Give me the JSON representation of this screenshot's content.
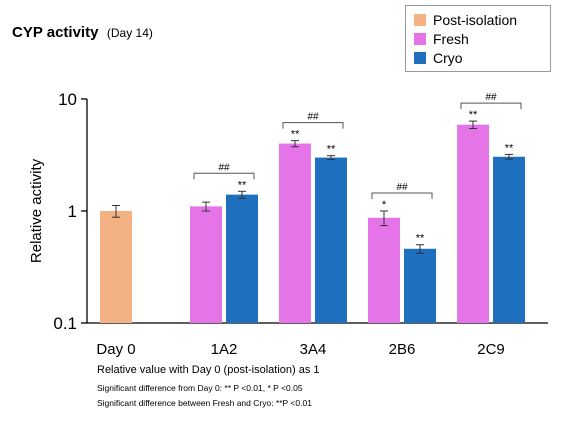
{
  "chart_data": {
    "type": "bar",
    "title": "CYP activity",
    "subtitle": "(Day 14)",
    "ylabel": "Relative activity",
    "yscale": "log",
    "ylim": [
      0.1,
      10
    ],
    "yticks": [
      {
        "value": 0.1,
        "label": "0.1"
      },
      {
        "value": 1,
        "label": "1"
      },
      {
        "value": 10,
        "label": "10"
      }
    ],
    "categories": [
      "Day 0",
      "1A2",
      "3A4",
      "2B6",
      "2C9"
    ],
    "series": [
      {
        "name": "Post-isolation",
        "color": "#f4b183",
        "values": [
          1.0,
          null,
          null,
          null,
          null
        ],
        "errors": [
          0.12,
          null,
          null,
          null,
          null
        ],
        "marks": [
          "",
          "",
          "",
          "",
          ""
        ]
      },
      {
        "name": "Fresh",
        "color": "#e574e8",
        "values": [
          null,
          1.1,
          4.0,
          0.87,
          5.9
        ],
        "errors": [
          null,
          0.1,
          0.25,
          0.13,
          0.45
        ],
        "marks": [
          "",
          "",
          "**",
          "*",
          "**"
        ]
      },
      {
        "name": "Cryo",
        "color": "#1f6fbf",
        "values": [
          null,
          1.4,
          3.0,
          0.46,
          3.05
        ],
        "errors": [
          null,
          0.1,
          0.12,
          0.04,
          0.15
        ],
        "marks": [
          "",
          "**",
          "**",
          "**",
          "**"
        ]
      }
    ],
    "comparison_mark": "##",
    "comparison_categories": [
      "1A2",
      "3A4",
      "2B6",
      "2C9"
    ],
    "legend_position": "top-right",
    "grid": false
  },
  "notes": {
    "main": "Relative value with Day 0 (post-isolation) as 1",
    "sig_day0": "Significant difference from Day 0: ** P <0.01, * P <0.05",
    "sig_fresh_cryo": "Significant difference between Fresh and Cryo: **P <0.01"
  }
}
